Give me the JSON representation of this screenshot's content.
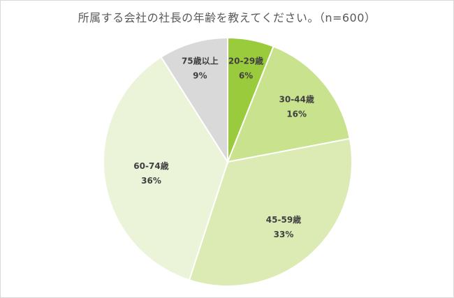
{
  "chart_data": {
    "type": "pie",
    "title": "所属する会社の社長の年齢を教えてください。（n=600）",
    "slices": [
      {
        "label": "20-29歳",
        "value": 6,
        "value_label": "6%",
        "color": "#9ACB3C"
      },
      {
        "label": "30-44歳",
        "value": 16,
        "value_label": "16%",
        "color": "#C8E28D"
      },
      {
        "label": "45-59歳",
        "value": 33,
        "value_label": "33%",
        "color": "#DCEBB4"
      },
      {
        "label": "60-74歳",
        "value": 36,
        "value_label": "36%",
        "color": "#EBF4D8"
      },
      {
        "label": "75歳以上",
        "value": 9,
        "value_label": "9%",
        "color": "#D9D9D9"
      }
    ],
    "start_angle_deg": 0,
    "direction": "clockwise",
    "legend": "none"
  }
}
